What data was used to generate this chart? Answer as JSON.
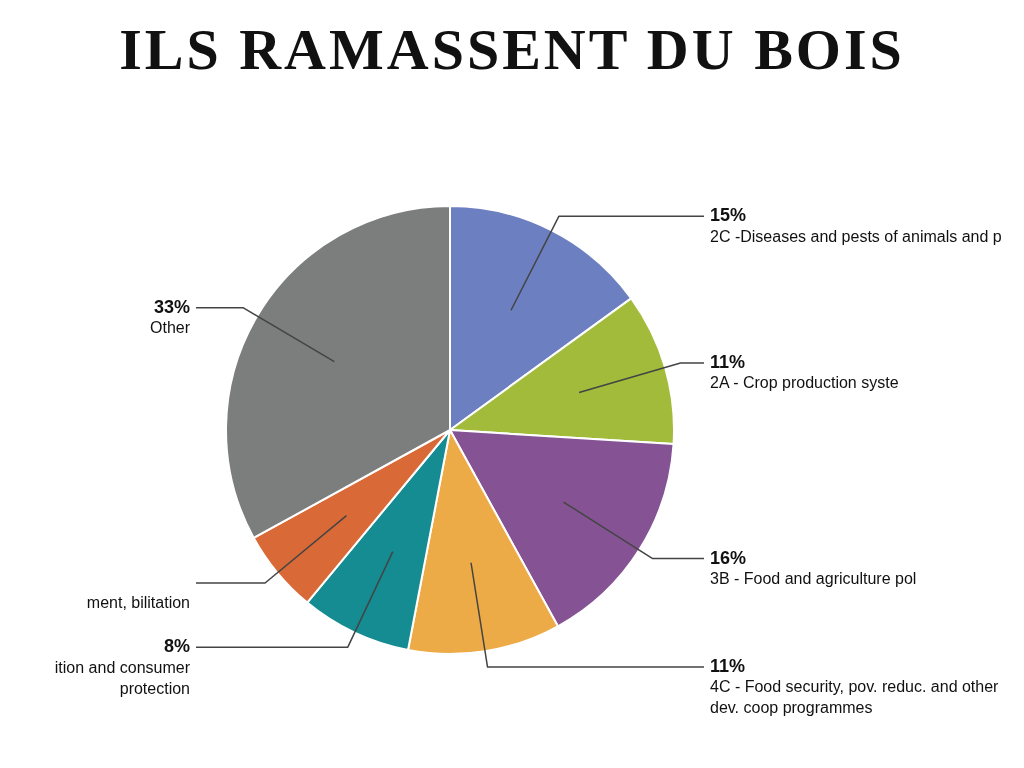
{
  "chart_data": {
    "type": "pie",
    "title": "ILS RAMASSENT DU BOIS",
    "categories": [
      "2C -Diseases and pests of animals and p",
      "2A - Crop production syste",
      "3B - Food and agriculture pol",
      "4C - Food security, pov. reduc. and other dev. coop programmes",
      "ition and consumer protection",
      "ment, bilitation",
      "Other"
    ],
    "values": [
      15,
      11,
      16,
      11,
      8,
      6,
      33
    ],
    "colors": [
      "#6c7fc0",
      "#a2bb3b",
      "#855394",
      "#ecab47",
      "#158b92",
      "#d96a37",
      "#7b7e7c"
    ],
    "value_labels": [
      "15%",
      "11%",
      "16%",
      "11%",
      "8%",
      null,
      "33%"
    ]
  }
}
